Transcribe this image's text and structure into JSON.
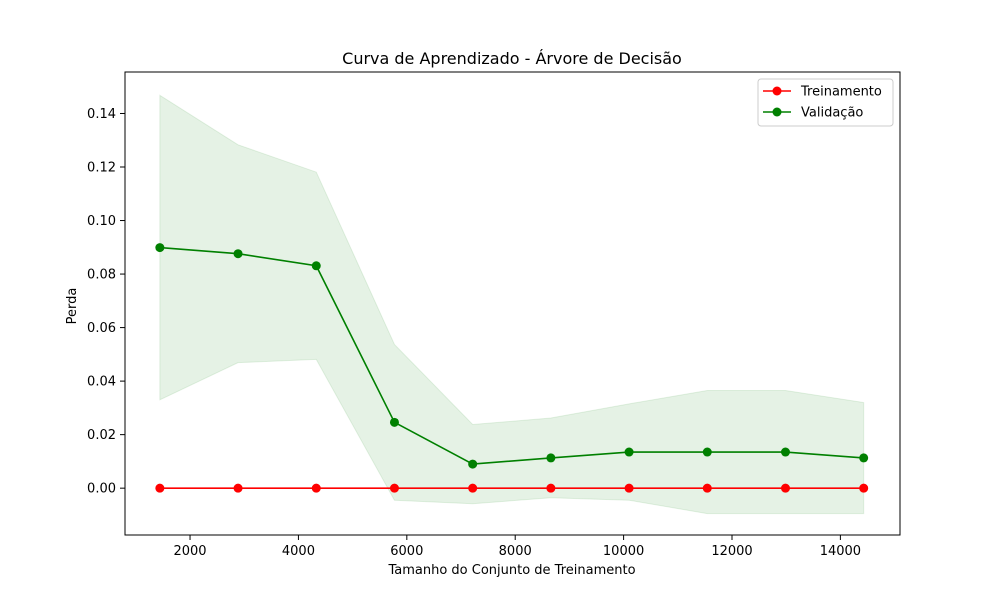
{
  "chart_data": {
    "type": "line",
    "title": "Curva de Aprendizado - Árvore de Decisão",
    "xlabel": "Tamanho do Conjunto de Treinamento",
    "ylabel": "Perda",
    "xlim": [
      800,
      15100
    ],
    "ylim": [
      -0.0175,
      0.1555
    ],
    "xticks": [
      2000,
      4000,
      6000,
      8000,
      10000,
      12000,
      14000
    ],
    "xtick_labels": [
      "2000",
      "4000",
      "6000",
      "8000",
      "10000",
      "12000",
      "14000"
    ],
    "yticks": [
      0.0,
      0.02,
      0.04,
      0.06,
      0.08,
      0.1,
      0.12,
      0.14
    ],
    "ytick_labels": [
      "0.00",
      "0.02",
      "0.04",
      "0.06",
      "0.08",
      "0.10",
      "0.12",
      "0.14"
    ],
    "grid": false,
    "legend": "upper right",
    "x": [
      1443,
      2886,
      4329,
      5772,
      7215,
      8658,
      10101,
      11544,
      12987,
      14430
    ],
    "series": [
      {
        "name": "Treinamento",
        "color": "#ff0000",
        "values": [
          0,
          0,
          0,
          0,
          0,
          0,
          0,
          0,
          0,
          0
        ]
      },
      {
        "name": "Validação",
        "color": "#008000",
        "values": [
          0.0899,
          0.0876,
          0.0831,
          0.0246,
          0.009,
          0.0113,
          0.0135,
          0.0135,
          0.0135,
          0.0113
        ],
        "band_upper": [
          0.1468,
          0.1283,
          0.1181,
          0.0537,
          0.0238,
          0.0262,
          0.0315,
          0.0365,
          0.0365,
          0.032
        ],
        "band_lower": [
          0.033,
          0.0469,
          0.0481,
          -0.0045,
          -0.0058,
          -0.0036,
          -0.0045,
          -0.0095,
          -0.0095,
          -0.0095
        ],
        "band_color": "#008000",
        "band_opacity": 0.1
      }
    ]
  }
}
